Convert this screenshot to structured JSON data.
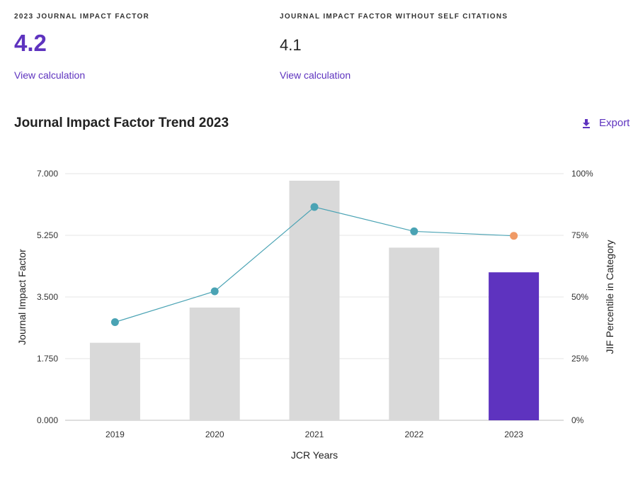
{
  "metrics": {
    "jif": {
      "label": "2023 JOURNAL IMPACT FACTOR",
      "value": "4.2",
      "link": "View calculation"
    },
    "jif_without_self": {
      "label": "JOURNAL IMPACT FACTOR WITHOUT SELF CITATIONS",
      "value": "4.1",
      "link": "View calculation"
    }
  },
  "section": {
    "title": "Journal Impact Factor Trend 2023",
    "export_label": "Export",
    "export_icon": "download-icon"
  },
  "colors": {
    "accent": "#5e33bf",
    "bar_default": "#d9d9d9",
    "bar_current": "#5e33bf",
    "line": "#4aa3b4",
    "point": "#4aa3b4",
    "point_current": "#f09a66",
    "grid": "#e6e6e6"
  },
  "chart_data": {
    "type": "bar",
    "categories": [
      "2019",
      "2020",
      "2021",
      "2022",
      "2023"
    ],
    "series": [
      {
        "name": "Journal Impact Factor",
        "values": [
          2.2,
          3.2,
          6.8,
          4.9,
          4.2
        ],
        "axis": "left"
      },
      {
        "name": "JIF Percentile in Category",
        "type": "line",
        "values": [
          39.8,
          52.3,
          86.5,
          76.6,
          74.8
        ],
        "axis": "right"
      }
    ],
    "title": "Journal Impact Factor Trend 2023",
    "xlabel": "JCR Years",
    "ylabel": "Journal Impact Factor",
    "y2label": "JIF Percentile in Category",
    "ylim": [
      0,
      7
    ],
    "y2lim": [
      0,
      100
    ],
    "yticks": [
      "0.000",
      "1.750",
      "3.500",
      "5.250",
      "7.000"
    ],
    "y2ticks": [
      "0%",
      "25%",
      "50%",
      "75%",
      "100%"
    ],
    "highlight_category": "2023",
    "grid": true,
    "legend": "none"
  }
}
